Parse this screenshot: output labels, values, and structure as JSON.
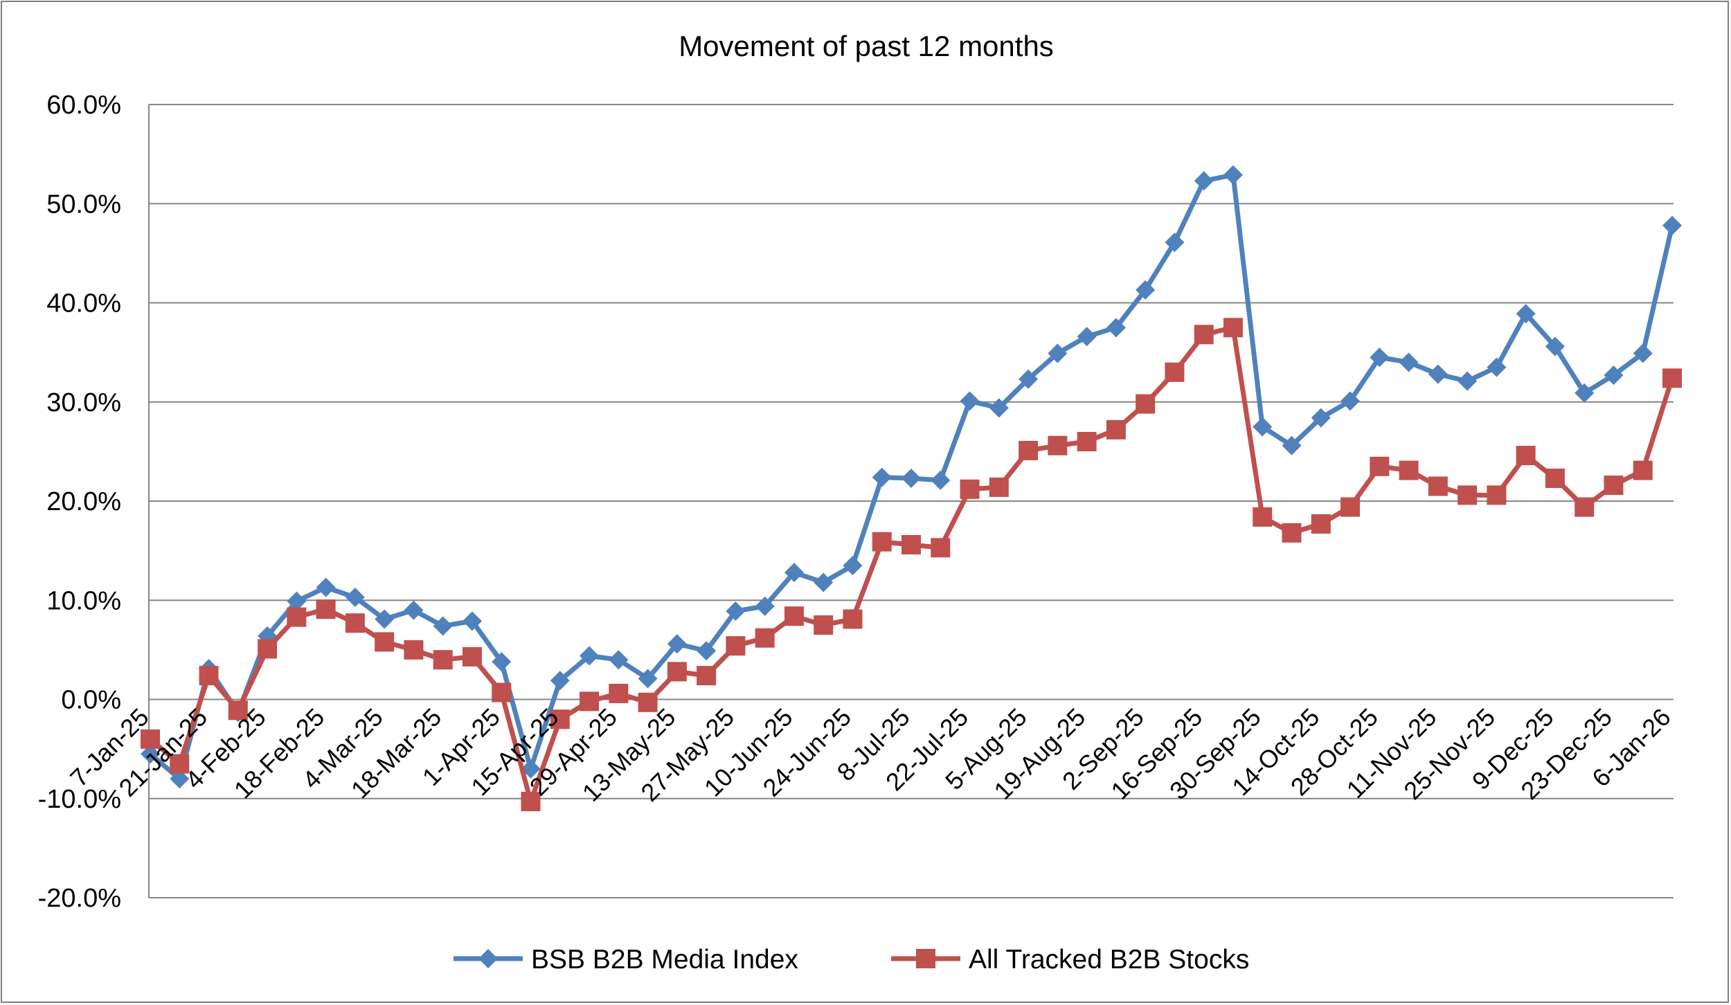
{
  "chart_data": {
    "type": "line",
    "title": "Movement of past 12 months",
    "xlabel": "",
    "ylabel": "",
    "ylim": [
      -20,
      60
    ],
    "yticks": [
      60,
      50,
      40,
      30,
      20,
      10,
      0,
      -10,
      -20
    ],
    "ytick_labels": [
      "60.0%",
      "50.0%",
      "40.0%",
      "30.0%",
      "20.0%",
      "10.0%",
      "0.0%",
      "-10.0%",
      "-20.0%"
    ],
    "grid": true,
    "legend_position": "bottom",
    "x": [
      "7-Jan-25",
      "14-Jan-25",
      "21-Jan-25",
      "28-Jan-25",
      "4-Feb-25",
      "11-Feb-25",
      "18-Feb-25",
      "25-Feb-25",
      "4-Mar-25",
      "11-Mar-25",
      "18-Mar-25",
      "25-Mar-25",
      "1-Apr-25",
      "8-Apr-25",
      "15-Apr-25",
      "22-Apr-25",
      "29-Apr-25",
      "6-May-25",
      "13-May-25",
      "20-May-25",
      "27-May-25",
      "3-Jun-25",
      "10-Jun-25",
      "17-Jun-25",
      "24-Jun-25",
      "1-Jul-25",
      "8-Jul-25",
      "15-Jul-25",
      "22-Jul-25",
      "29-Jul-25",
      "5-Aug-25",
      "12-Aug-25",
      "19-Aug-25",
      "26-Aug-25",
      "2-Sep-25",
      "9-Sep-25",
      "16-Sep-25",
      "23-Sep-25",
      "30-Sep-25",
      "7-Oct-25",
      "14-Oct-25",
      "21-Oct-25",
      "28-Oct-25",
      "4-Nov-25",
      "11-Nov-25",
      "18-Nov-25",
      "25-Nov-25",
      "2-Dec-25",
      "9-Dec-25",
      "16-Dec-25",
      "23-Dec-25",
      "30-Dec-25",
      "6-Jan-26"
    ],
    "x_tick_labels": [
      "7-Jan-25",
      "",
      "21-Jan-25",
      "",
      "4-Feb-25",
      "",
      "18-Feb-25",
      "",
      "4-Mar-25",
      "",
      "18-Mar-25",
      "",
      "1-Apr-25",
      "",
      "15-Apr-25",
      "",
      "29-Apr-25",
      "",
      "13-May-25",
      "",
      "27-May-25",
      "",
      "10-Jun-25",
      "",
      "24-Jun-25",
      "",
      "8-Jul-25",
      "",
      "22-Jul-25",
      "",
      "5-Aug-25",
      "",
      "19-Aug-25",
      "",
      "2-Sep-25",
      "",
      "16-Sep-25",
      "",
      "30-Sep-25",
      "",
      "14-Oct-25",
      "",
      "28-Oct-25",
      "",
      "11-Nov-25",
      "",
      "25-Nov-25",
      "",
      "9-Dec-25",
      "",
      "23-Dec-25",
      "",
      "6-Jan-26"
    ],
    "series": [
      {
        "name": "BSB B2B Media Index",
        "color": "#4f81bd",
        "marker": "diamond",
        "values": [
          -5.5,
          -8.0,
          3.1,
          -1.3,
          6.4,
          9.9,
          11.3,
          10.3,
          8.1,
          9.0,
          7.4,
          7.9,
          3.8,
          -7.0,
          1.9,
          4.4,
          4.0,
          2.1,
          5.6,
          4.9,
          8.9,
          9.4,
          12.8,
          11.8,
          13.5,
          22.4,
          22.3,
          22.1,
          30.1,
          29.4,
          32.3,
          34.9,
          36.6,
          37.5,
          41.3,
          46.1,
          52.3,
          52.9,
          27.5,
          25.6,
          28.4,
          30.1,
          34.5,
          34.0,
          32.8,
          32.1,
          33.5,
          38.9,
          35.6,
          30.9,
          32.7,
          34.9,
          47.8
        ]
      },
      {
        "name": "All Tracked B2B Stocks",
        "color": "#c0504d",
        "marker": "square",
        "values": [
          -4.0,
          -6.5,
          2.4,
          -1.1,
          5.1,
          8.3,
          9.1,
          7.7,
          5.8,
          5.0,
          4.0,
          4.3,
          0.7,
          -10.3,
          -2.0,
          -0.2,
          0.6,
          -0.3,
          2.8,
          2.4,
          5.4,
          6.2,
          8.4,
          7.5,
          8.1,
          15.9,
          15.6,
          15.3,
          21.2,
          21.4,
          25.1,
          25.6,
          26.0,
          27.2,
          29.8,
          33.0,
          36.8,
          37.5,
          18.4,
          16.8,
          17.7,
          19.4,
          23.5,
          23.1,
          21.5,
          20.6,
          20.6,
          24.6,
          22.3,
          19.4,
          21.6,
          23.1,
          32.4
        ]
      }
    ]
  }
}
